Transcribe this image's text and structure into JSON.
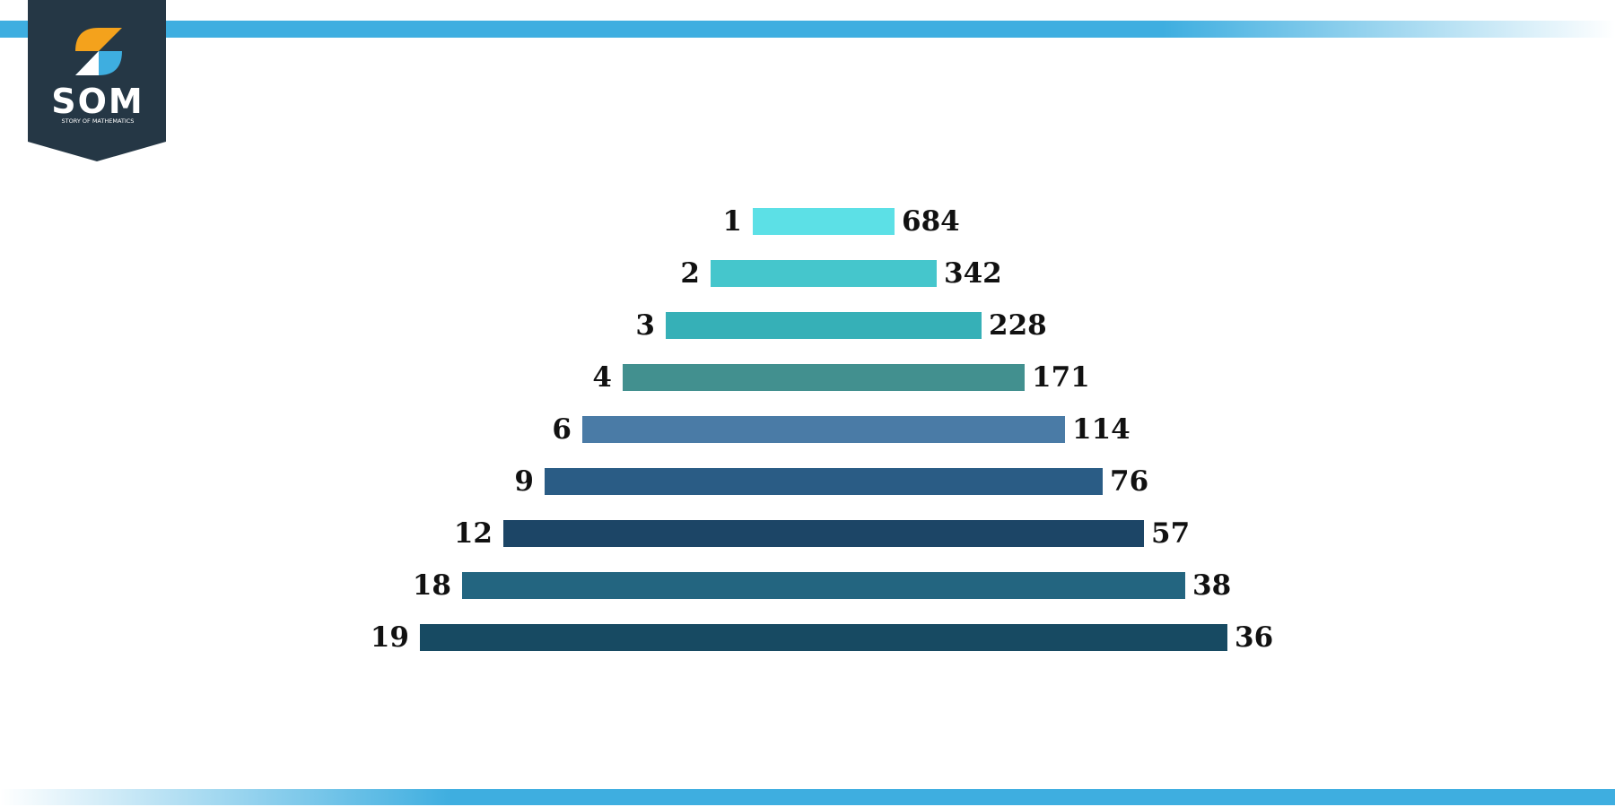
{
  "logo": {
    "name": "SOM",
    "tagline": "STORY OF MATHEMATICS"
  },
  "pairs": [
    {
      "left": "1",
      "right": "684"
    },
    {
      "left": "2",
      "right": "342"
    },
    {
      "left": "3",
      "right": "228"
    },
    {
      "left": "4",
      "right": "171"
    },
    {
      "left": "6",
      "right": "114"
    },
    {
      "left": "9",
      "right": "76"
    },
    {
      "left": "12",
      "right": "57"
    },
    {
      "left": "18",
      "right": "38"
    },
    {
      "left": "19",
      "right": "36"
    }
  ]
}
